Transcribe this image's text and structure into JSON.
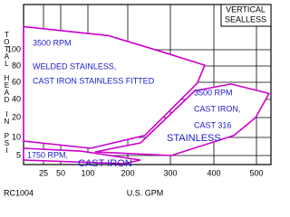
{
  "chart_data": {
    "type": "region",
    "title": [
      "VERTICAL",
      "SEALLESS"
    ],
    "x_label": "U.S.  GPM",
    "y_label": "TOTAL HEAD IN PSI",
    "footnote": "RC1004",
    "color": "#cc00cc",
    "grid": true,
    "xlim": [
      0,
      530
    ],
    "xticks": [
      25,
      50,
      100,
      200,
      300,
      400,
      500
    ],
    "ylim": [
      3,
      145
    ],
    "yticks": [
      5,
      10,
      20,
      40,
      60,
      80,
      100
    ],
    "series": [
      {
        "x": [
          0,
          152,
          283,
          379,
          362,
          240,
          107,
          0
        ],
        "values": [
          123,
          114,
          97,
          81,
          59,
          11,
          7,
          9
        ]
      },
      {
        "x": [
          356,
          440,
          526,
          498,
          447,
          302,
          118,
          230
        ],
        "values": [
          50,
          58,
          47,
          20,
          11,
          5,
          6,
          8.5
        ]
      },
      {
        "x": [
          0,
          88,
          230,
          190,
          0
        ],
        "values": [
          7,
          6.2,
          4,
          3.2,
          4
        ]
      }
    ],
    "annotations": [
      "3500 RPM",
      "WELDED STAINLESS,",
      "CAST IRON STAINLESS FITTED",
      "3500 RPM",
      "CAST IRON,",
      "CAST 316",
      "STAINLESS",
      "1750 RPM,",
      "CAST IRON"
    ]
  }
}
